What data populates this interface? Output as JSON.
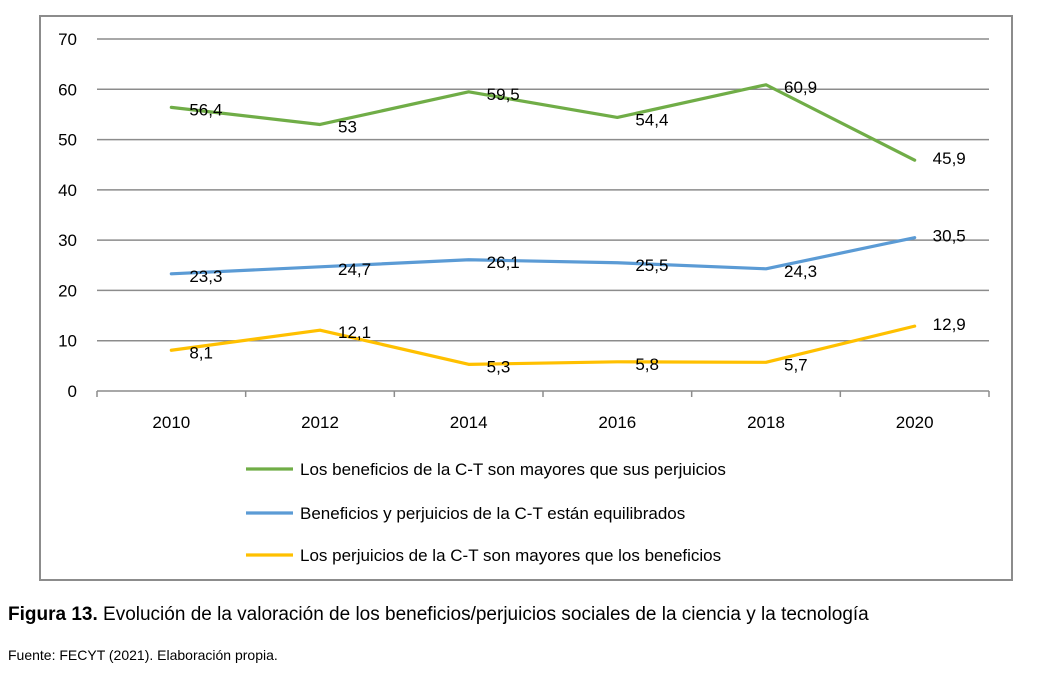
{
  "chart_data": {
    "type": "line",
    "categories": [
      "2010",
      "2012",
      "2014",
      "2016",
      "2018",
      "2020"
    ],
    "ylim": [
      0,
      70
    ],
    "yticks": [
      0,
      10,
      20,
      30,
      40,
      50,
      60,
      70
    ],
    "grid": true,
    "legend_position": "bottom",
    "series": [
      {
        "name": "Los beneficios de la C-T son mayores que sus perjuicios",
        "color": "#70ad47",
        "values": [
          56.4,
          53,
          59.5,
          54.4,
          60.9,
          45.9
        ],
        "labels": [
          "56,4",
          "53",
          "59,5",
          "54,4",
          "60,9",
          "45,9"
        ]
      },
      {
        "name": "Beneficios y perjuicios de la C-T están equilibrados",
        "color": "#5b9bd5",
        "values": [
          23.3,
          24.7,
          26.1,
          25.5,
          24.3,
          30.5
        ],
        "labels": [
          "23,3",
          "24,7",
          "26,1",
          "25,5",
          "24,3",
          "30,5"
        ]
      },
      {
        "name": "Los perjuicios de la C-T son mayores que los beneficios",
        "color": "#ffc000",
        "values": [
          8.1,
          12.1,
          5.3,
          5.8,
          5.7,
          12.9
        ],
        "labels": [
          "8,1",
          "12,1",
          "5,3",
          "5,8",
          "5,7",
          "12,9"
        ]
      }
    ]
  },
  "caption": {
    "label": "Figura 13.",
    "text": " Evolución de la valoración de los beneficios/perjuicios sociales de la ciencia y la tecnología"
  },
  "source": "Fuente: FECYT (2021). Elaboración propia."
}
